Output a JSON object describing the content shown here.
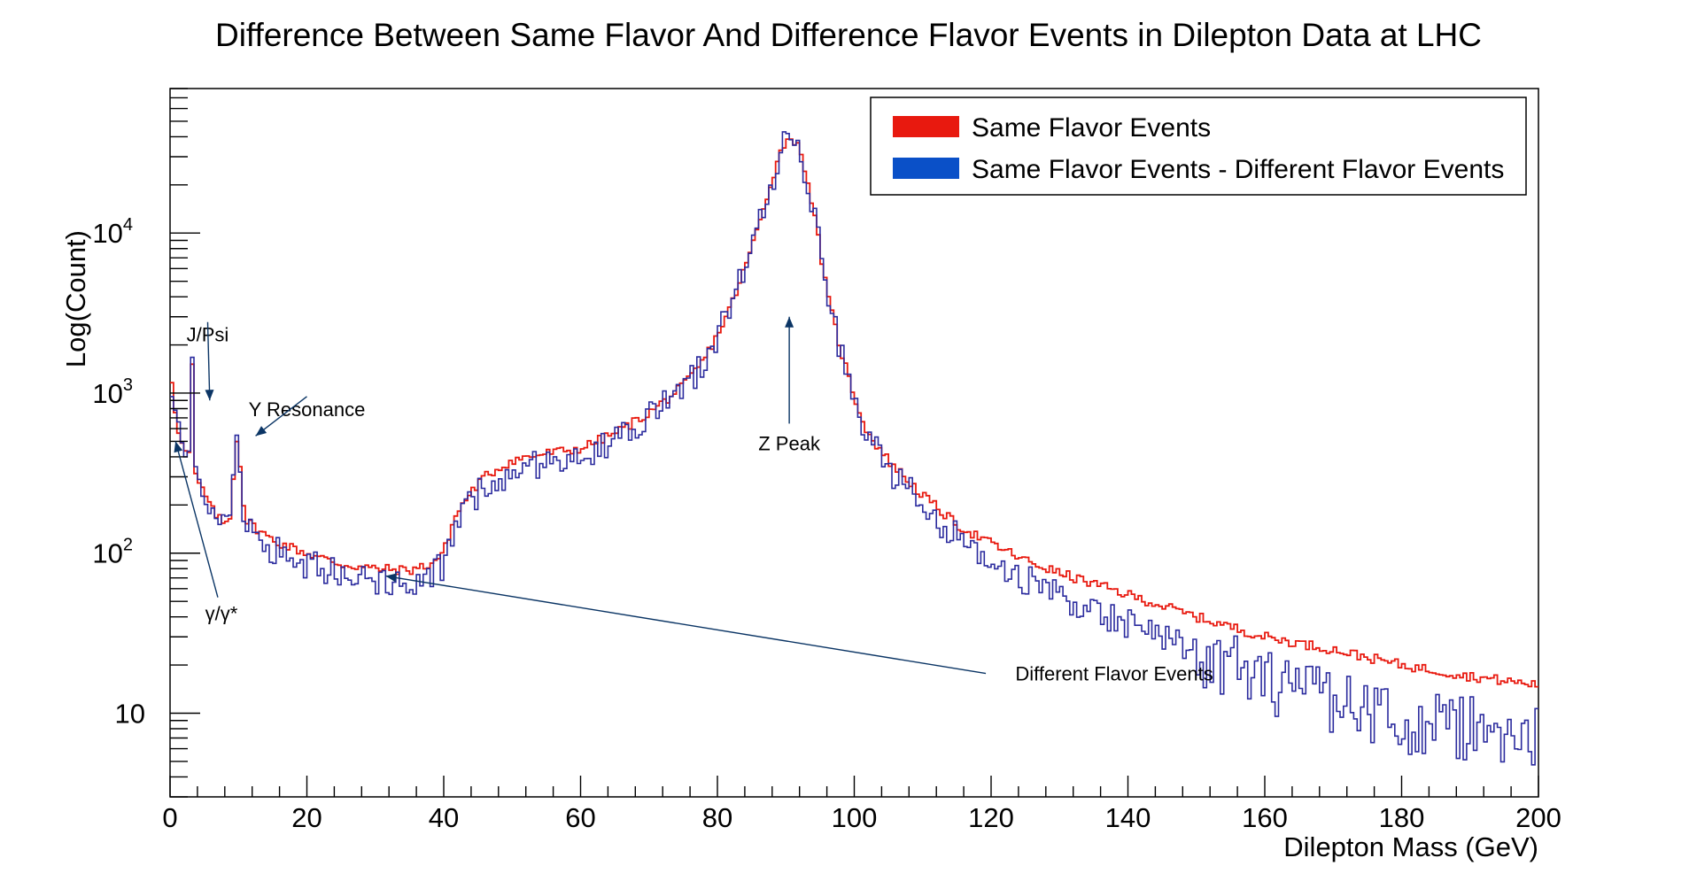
{
  "chart_data": {
    "type": "line",
    "title": "Difference Between Same Flavor And Difference Flavor Events in Dilepton Data at LHC",
    "xlabel": "Dilepton Mass (GeV)",
    "ylabel": "Log(Count)",
    "xlim": [
      0,
      200
    ],
    "ylim": [
      3,
      80000
    ],
    "yscale": "log",
    "x_ticks": [
      "0",
      "20",
      "40",
      "60",
      "80",
      "100",
      "120",
      "140",
      "160",
      "180",
      "200"
    ],
    "y_ticks": [
      {
        "base": "10",
        "exp": "",
        "value": 10
      },
      {
        "base": "10",
        "exp": "2",
        "value": 100
      },
      {
        "base": "10",
        "exp": "3",
        "value": 1000
      },
      {
        "base": "10",
        "exp": "4",
        "value": 10000
      }
    ],
    "bin_width": 0.5,
    "legend_position": "top-right",
    "series": [
      {
        "name": "Same Flavor Events",
        "color": "#e8190f",
        "anchors_x": [
          0,
          0.5,
          1,
          1.5,
          2,
          2.5,
          3,
          3.25,
          3.5,
          4,
          5,
          6,
          8,
          9,
          9.5,
          10,
          10.5,
          11,
          12,
          15,
          20,
          25,
          30,
          35,
          38,
          40,
          41,
          42,
          44,
          46,
          50,
          55,
          60,
          65,
          70,
          75,
          78,
          80,
          82,
          84,
          86,
          88,
          89,
          90,
          91,
          92,
          93,
          94,
          95,
          96,
          98,
          100,
          102,
          105,
          110,
          115,
          120,
          125,
          130,
          140,
          150,
          160,
          170,
          180,
          190,
          200
        ],
        "anchors_y": [
          1600,
          900,
          700,
          500,
          450,
          420,
          400,
          1500,
          320,
          280,
          240,
          190,
          150,
          180,
          490,
          520,
          260,
          160,
          150,
          120,
          100,
          85,
          80,
          78,
          85,
          100,
          140,
          180,
          240,
          300,
          380,
          420,
          450,
          560,
          750,
          1100,
          1600,
          2300,
          3500,
          6000,
          11000,
          22000,
          30000,
          38000,
          40000,
          33000,
          24000,
          14000,
          8000,
          4200,
          1900,
          950,
          560,
          380,
          230,
          150,
          115,
          90,
          75,
          55,
          40,
          30,
          25,
          20,
          17,
          15
        ],
        "noise": 0.07
      },
      {
        "name": "Same Flavor Events - Different Flavor Events",
        "color": "#2b2b9e",
        "anchors_x": [
          0,
          0.5,
          1,
          1.5,
          2,
          2.5,
          3,
          3.25,
          3.5,
          4,
          5,
          6,
          8,
          9,
          9.5,
          10,
          10.5,
          11,
          12,
          15,
          20,
          25,
          30,
          35,
          38,
          40,
          41,
          42,
          44,
          46,
          50,
          55,
          60,
          65,
          70,
          75,
          78,
          80,
          82,
          84,
          86,
          88,
          89,
          90,
          91,
          92,
          93,
          94,
          95,
          96,
          98,
          100,
          102,
          105,
          110,
          115,
          120,
          125,
          130,
          140,
          150,
          160,
          170,
          180,
          190,
          200
        ],
        "anchors_y": [
          1550,
          880,
          680,
          480,
          430,
          400,
          380,
          1450,
          300,
          260,
          225,
          180,
          145,
          175,
          480,
          510,
          250,
          150,
          135,
          105,
          85,
          72,
          66,
          64,
          70,
          85,
          120,
          160,
          210,
          260,
          330,
          370,
          410,
          520,
          710,
          1050,
          1550,
          2250,
          3400,
          5900,
          10800,
          21500,
          29500,
          37500,
          39500,
          32500,
          23500,
          13700,
          7800,
          4050,
          1820,
          880,
          510,
          340,
          200,
          125,
          92,
          68,
          55,
          36,
          24,
          16,
          12,
          9,
          8,
          7
        ],
        "noise": 0.22
      }
    ],
    "annotations": [
      {
        "text": "J/Psi",
        "x": 5.5,
        "y": 2100,
        "arrow_to": [
          5.8,
          900
        ]
      },
      {
        "text": "Y Resonance",
        "x": 20,
        "y": 720,
        "arrow_to": [
          12.5,
          540
        ]
      },
      {
        "text": "Z Peak",
        "x": 90.5,
        "y": 440,
        "arrow_to": [
          90.5,
          3000
        ]
      },
      {
        "text": "Different Flavor Events",
        "x": 138,
        "y": 16,
        "arrow_to": [
          31.5,
          72
        ]
      },
      {
        "text": "γ/γ*",
        "x": 7.5,
        "y": 38,
        "arrow_to": [
          0.8,
          500
        ]
      }
    ]
  },
  "legend": {
    "items": [
      {
        "label": "Same Flavor Events",
        "color": "#e8190f"
      },
      {
        "label": "Same Flavor Events - Different Flavor Events",
        "color": "#2b2b9e"
      }
    ]
  }
}
